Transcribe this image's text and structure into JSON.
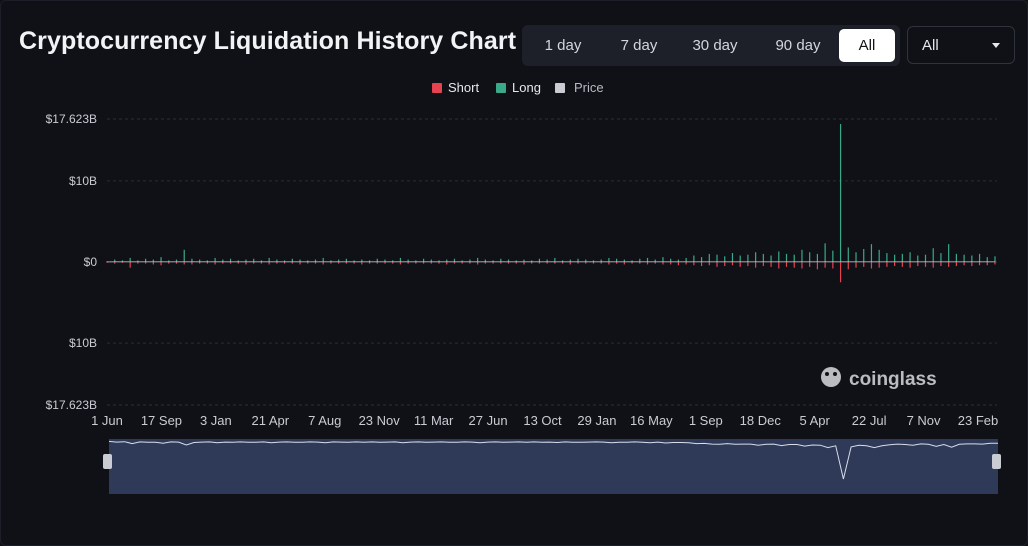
{
  "header": {
    "title": "Cryptocurrency Liquidation History Chart"
  },
  "range_buttons": [
    {
      "label": "1 day",
      "active": false
    },
    {
      "label": "7 day",
      "active": false
    },
    {
      "label": "30 day",
      "active": false
    },
    {
      "label": "90 day",
      "active": false
    },
    {
      "label": "All",
      "active": true
    }
  ],
  "symbol_select": {
    "value": "All"
  },
  "watermark": {
    "text": "coinglass"
  },
  "colors": {
    "short": "#e5434f",
    "long": "#3aa98a",
    "price": "#c9ccd2",
    "navigator": "#3b4870"
  },
  "chart_data": {
    "type": "bar",
    "title": "Cryptocurrency Liquidation History Chart",
    "legend": [
      {
        "name": "Short",
        "color": "#e5434f"
      },
      {
        "name": "Long",
        "color": "#3aa98a"
      },
      {
        "name": "Price",
        "color": "#c9ccd2"
      }
    ],
    "legend_position": "top-center",
    "y_ticks": [
      {
        "value": 17.623,
        "label": "$17.623B"
      },
      {
        "value": 10,
        "label": "$10B"
      },
      {
        "value": 0,
        "label": "$0"
      },
      {
        "value": -10,
        "label": "$10B"
      },
      {
        "value": -17.623,
        "label": "$17.623B"
      }
    ],
    "ylim": [
      -17.623,
      17.623
    ],
    "x_ticks": [
      "1 Jun",
      "17 Sep",
      "3 Jan",
      "21 Apr",
      "7 Aug",
      "23 Nov",
      "11 Mar",
      "27 Jun",
      "13 Oct",
      "29 Jan",
      "16 May",
      "1 Sep",
      "18 Dec",
      "5 Apr",
      "22 Jul",
      "7 Nov",
      "23 Feb"
    ],
    "grid": true,
    "series": [
      {
        "name": "Long",
        "unit": "USD billions",
        "values": [
          0.1,
          0.3,
          0.2,
          0.5,
          0.2,
          0.4,
          0.3,
          0.6,
          0.2,
          0.3,
          1.5,
          0.4,
          0.3,
          0.2,
          0.5,
          0.3,
          0.4,
          0.2,
          0.3,
          0.4,
          0.2,
          0.5,
          0.3,
          0.2,
          0.4,
          0.3,
          0.2,
          0.3,
          0.5,
          0.2,
          0.3,
          0.4,
          0.2,
          0.3,
          0.2,
          0.4,
          0.3,
          0.2,
          0.5,
          0.3,
          0.2,
          0.4,
          0.3,
          0.2,
          0.3,
          0.4,
          0.2,
          0.3,
          0.5,
          0.3,
          0.2,
          0.4,
          0.3,
          0.2,
          0.3,
          0.2,
          0.4,
          0.3,
          0.5,
          0.2,
          0.3,
          0.4,
          0.3,
          0.2,
          0.3,
          0.5,
          0.4,
          0.3,
          0.2,
          0.4,
          0.5,
          0.3,
          0.6,
          0.4,
          0.3,
          0.5,
          0.8,
          0.6,
          1.0,
          0.9,
          0.7,
          1.1,
          0.8,
          0.9,
          1.2,
          1.0,
          0.8,
          1.3,
          1.0,
          0.9,
          1.5,
          1.2,
          1.0,
          2.3,
          1.4,
          17.0,
          1.8,
          1.2,
          1.6,
          2.2,
          1.5,
          1.1,
          0.9,
          1.0,
          1.2,
          0.8,
          0.9,
          1.7,
          1.1,
          2.2,
          1.0,
          0.9,
          0.8,
          1.0,
          0.6,
          0.7
        ]
      },
      {
        "name": "Short",
        "unit": "USD billions",
        "values": [
          0.1,
          0.2,
          0.1,
          0.7,
          0.2,
          0.2,
          0.3,
          0.4,
          0.2,
          0.2,
          0.3,
          0.3,
          0.2,
          0.2,
          0.3,
          0.2,
          0.2,
          0.2,
          0.3,
          0.2,
          0.2,
          0.3,
          0.2,
          0.2,
          0.2,
          0.3,
          0.2,
          0.2,
          0.3,
          0.2,
          0.2,
          0.2,
          0.2,
          0.3,
          0.2,
          0.2,
          0.2,
          0.2,
          0.3,
          0.2,
          0.2,
          0.2,
          0.2,
          0.2,
          0.3,
          0.2,
          0.2,
          0.2,
          0.3,
          0.2,
          0.2,
          0.2,
          0.2,
          0.2,
          0.3,
          0.2,
          0.2,
          0.2,
          0.2,
          0.2,
          0.3,
          0.2,
          0.2,
          0.2,
          0.2,
          0.3,
          0.2,
          0.3,
          0.2,
          0.2,
          0.3,
          0.2,
          0.3,
          0.3,
          0.4,
          0.3,
          0.4,
          0.5,
          0.4,
          0.6,
          0.5,
          0.4,
          0.6,
          0.5,
          0.7,
          0.5,
          0.6,
          0.8,
          0.6,
          0.7,
          0.8,
          0.6,
          0.9,
          0.7,
          0.8,
          2.5,
          0.9,
          0.7,
          0.6,
          0.8,
          0.7,
          0.6,
          0.5,
          0.6,
          0.7,
          0.5,
          0.6,
          0.7,
          0.5,
          0.6,
          0.5,
          0.4,
          0.5,
          0.4,
          0.4,
          0.3
        ]
      },
      {
        "name": "Price",
        "unit": "USD billions",
        "values": [
          0.15,
          0.2,
          0.18,
          0.22,
          0.2,
          0.16,
          0.18,
          0.2,
          0.22,
          0.18,
          0.2,
          0.16,
          0.18,
          0.2,
          0.22,
          0.2,
          0.18,
          0.16,
          0.18,
          0.2,
          0.22,
          0.18,
          0.2,
          0.16,
          0.18,
          0.2,
          0.22,
          0.2,
          0.18,
          0.16,
          0.18,
          0.2,
          0.22,
          0.18,
          0.2,
          0.16,
          0.18,
          0.2,
          0.22,
          0.2,
          0.18,
          0.16,
          0.18,
          0.2,
          0.22,
          0.18,
          0.2,
          0.16,
          0.18,
          0.2,
          0.22,
          0.2,
          0.18,
          0.16,
          0.18,
          0.2,
          0.22,
          0.18,
          0.2,
          0.16,
          0.18,
          0.2,
          0.22,
          0.2,
          0.18,
          0.16,
          0.18,
          0.2,
          0.22,
          0.18,
          0.2,
          0.16,
          0.18,
          0.2,
          0.22,
          0.2,
          0.18,
          0.16,
          0.18,
          0.2,
          0.22,
          0.18,
          0.2,
          0.16,
          0.18,
          0.2,
          0.22,
          0.2,
          0.18,
          0.16,
          0.18,
          0.2,
          0.22,
          0.18,
          0.2,
          0.16,
          0.18,
          0.2,
          0.22,
          0.2,
          0.18,
          0.16,
          0.18,
          0.2,
          0.22,
          0.18,
          0.2,
          0.16,
          0.18,
          0.2,
          0.22,
          0.2,
          0.18,
          0.16,
          0.18,
          0.2
        ]
      }
    ]
  }
}
